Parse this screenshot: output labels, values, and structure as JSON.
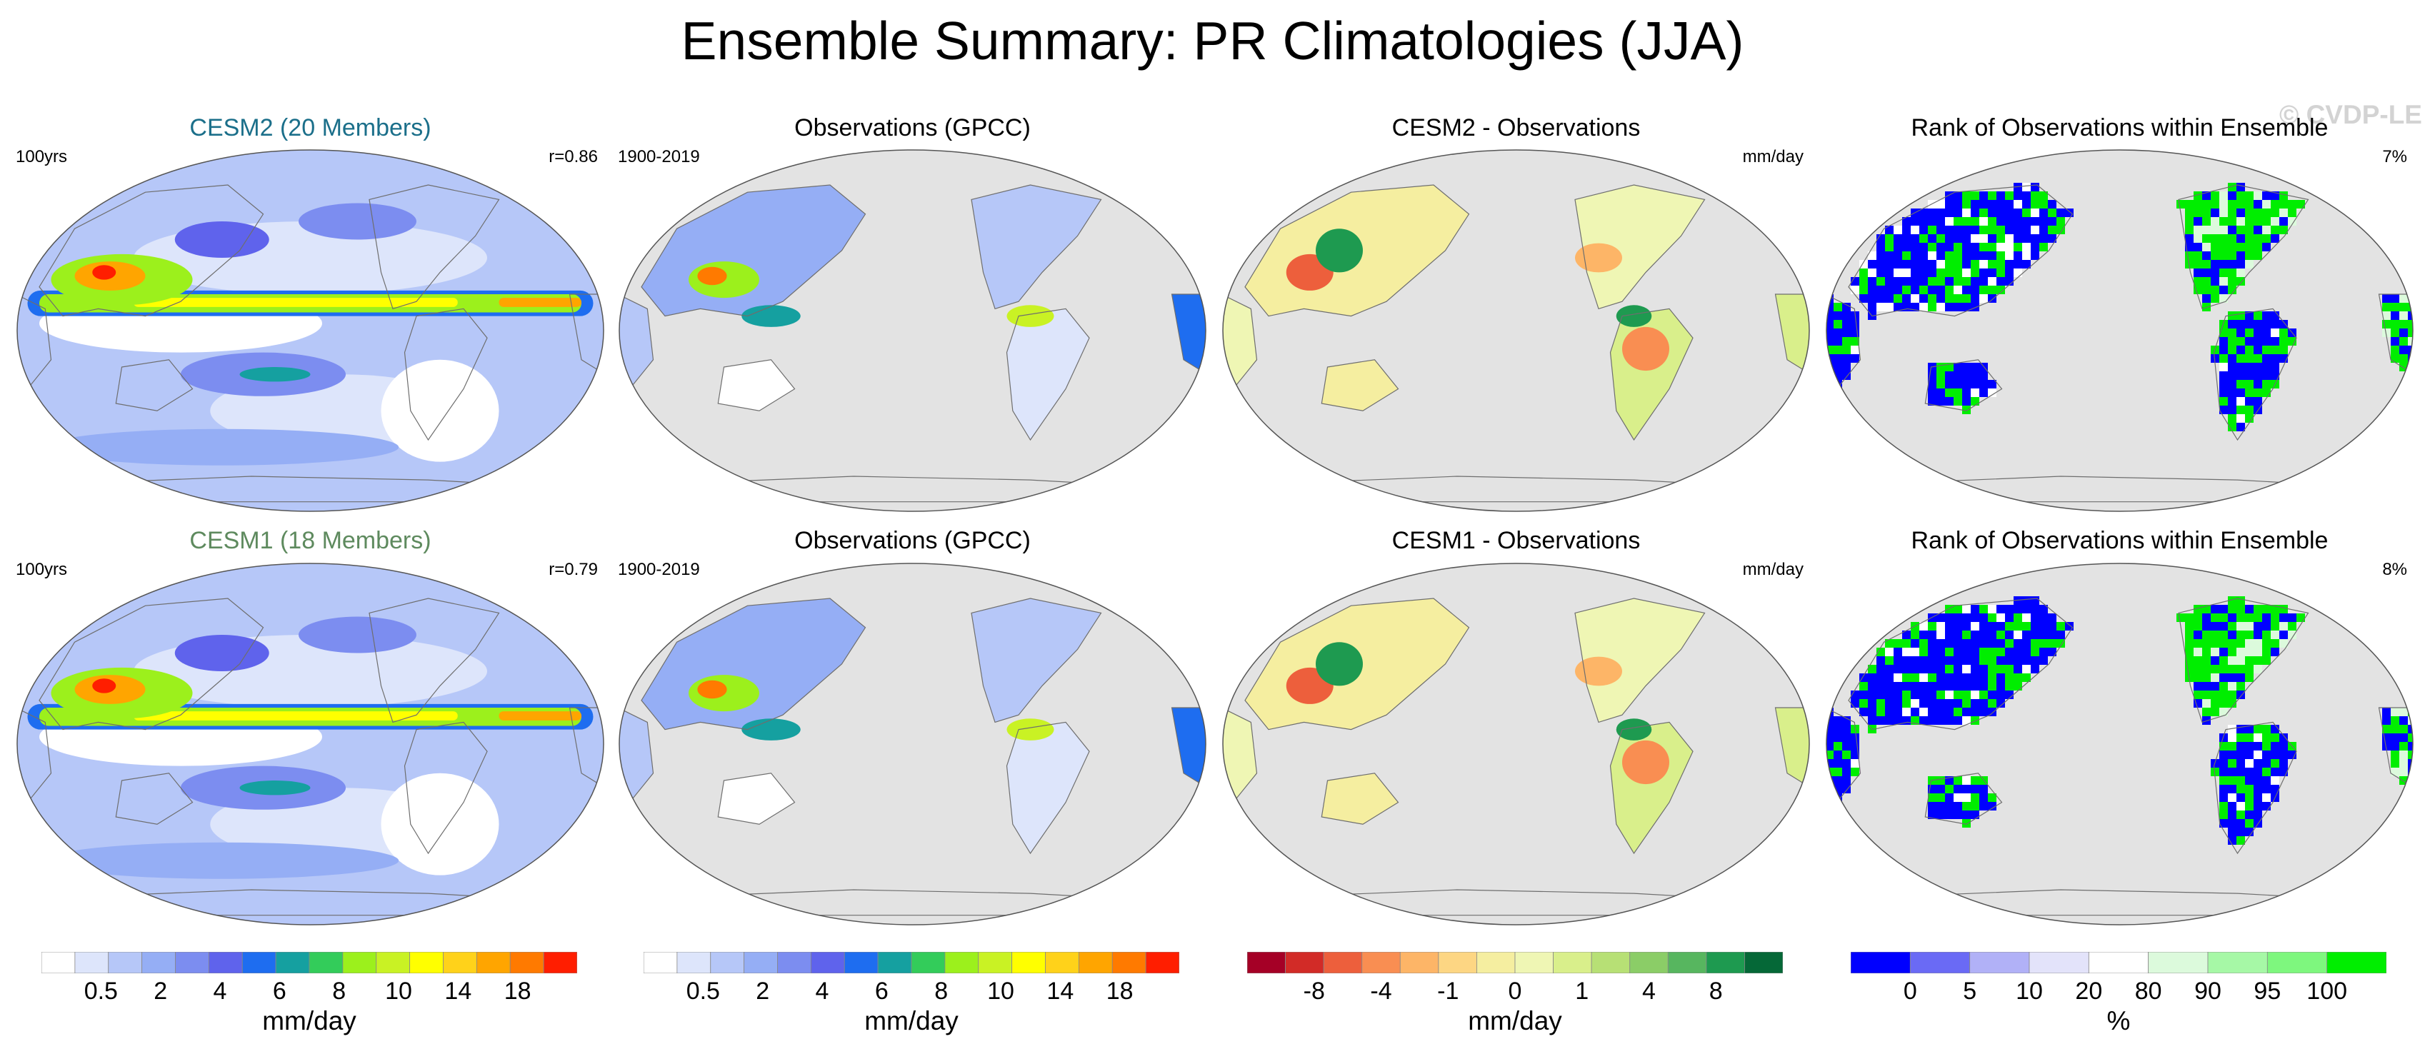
{
  "title": "Ensemble Summary: PR Climatologies (JJA)",
  "watermark": "© CVDP-LE",
  "rows": [
    {
      "panels": [
        {
          "title": "CESM2 (20 Members)",
          "title_color": "#1b6f8a",
          "left_note": "100yrs",
          "right_note": "r=0.86",
          "kind": "model"
        },
        {
          "title": "Observations (GPCC)",
          "title_color": "#000000",
          "left_note": "1900-2019",
          "right_note": "",
          "kind": "obs"
        },
        {
          "title": "CESM2 - Observations",
          "title_color": "#000000",
          "left_note": "",
          "right_note": "mm/day",
          "kind": "diff"
        },
        {
          "title": "Rank of Observations within Ensemble",
          "title_color": "#000000",
          "left_note": "",
          "right_note": "7%",
          "kind": "rank"
        }
      ]
    },
    {
      "panels": [
        {
          "title": "CESM1 (18 Members)",
          "title_color": "#5e8a5e",
          "left_note": "100yrs",
          "right_note": "r=0.79",
          "kind": "model"
        },
        {
          "title": "Observations (GPCC)",
          "title_color": "#000000",
          "left_note": "1900-2019",
          "right_note": "",
          "kind": "obs"
        },
        {
          "title": "CESM1 - Observations",
          "title_color": "#000000",
          "left_note": "",
          "right_note": "mm/day",
          "kind": "diff"
        },
        {
          "title": "Rank of Observations within Ensemble",
          "title_color": "#000000",
          "left_note": "",
          "right_note": "8%",
          "kind": "rank"
        }
      ]
    }
  ],
  "chart_data": {
    "type": "heatmap",
    "colorbars": [
      {
        "label": "mm/day",
        "ticks": [
          "0.5",
          "2",
          "4",
          "6",
          "8",
          "10",
          "14",
          "18"
        ],
        "colors": [
          "#ffffff",
          "#dde5fb",
          "#b6c7f8",
          "#95aef5",
          "#7c8df0",
          "#5f63ec",
          "#1e6df0",
          "#15a0a0",
          "#33cc5a",
          "#9cf01c",
          "#c9f224",
          "#ffff00",
          "#ffd21a",
          "#ffa500",
          "#ff7a00",
          "#ff1e00"
        ]
      },
      {
        "label": "mm/day",
        "ticks": [
          "0.5",
          "2",
          "4",
          "6",
          "8",
          "10",
          "14",
          "18"
        ],
        "colors": [
          "#ffffff",
          "#dde5fb",
          "#b6c7f8",
          "#95aef5",
          "#7c8df0",
          "#5f63ec",
          "#1e6df0",
          "#15a0a0",
          "#33cc5a",
          "#9cf01c",
          "#c9f224",
          "#ffff00",
          "#ffd21a",
          "#ffa500",
          "#ff7a00",
          "#ff1e00"
        ]
      },
      {
        "label": "mm/day",
        "ticks": [
          "-8",
          "-4",
          "-1",
          "0",
          "1",
          "4",
          "8"
        ],
        "colors": [
          "#a50026",
          "#d22b27",
          "#ed5f3c",
          "#f98e52",
          "#fdb567",
          "#fdd683",
          "#f5eea0",
          "#eff6b4",
          "#d9ef8b",
          "#b7e075",
          "#8bcd67",
          "#57b65f",
          "#1e9a50",
          "#056837"
        ]
      },
      {
        "label": "%",
        "ticks": [
          "0",
          "5",
          "10",
          "20",
          "80",
          "90",
          "95",
          "100"
        ],
        "colors": [
          "#0000ff",
          "#6a6af5",
          "#b1b1f7",
          "#e3e3fa",
          "#ffffff",
          "#dcfadc",
          "#a6f8a6",
          "#7ef77e",
          "#00ee00"
        ]
      }
    ],
    "panel_values": {
      "model_global_pattern_correlation": [
        0.86,
        0.79
      ],
      "rank_outside_percent": [
        7,
        8
      ]
    },
    "land_fill": "#e3e3e3"
  }
}
